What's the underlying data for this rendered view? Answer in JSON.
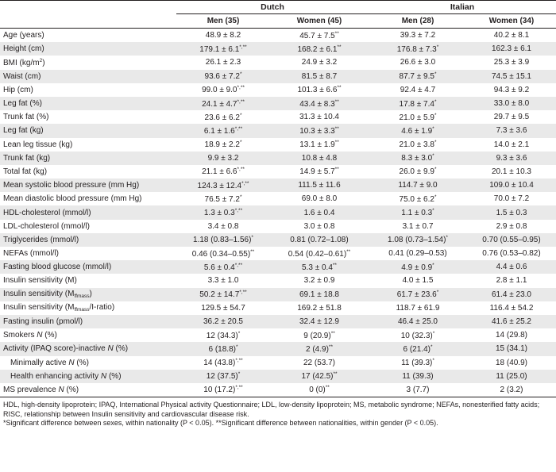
{
  "groups": [
    "Dutch",
    "Italian"
  ],
  "columns": [
    "Men (35)",
    "Women (45)",
    "Men (28)",
    "Women (34)"
  ],
  "rows": [
    {
      "label": "Age (years)",
      "values": [
        "48.9 ± 8.2",
        "45.7 ± 7.5**",
        "39.3 ± 7.2",
        "40.2 ± 8.1"
      ]
    },
    {
      "label": "Height (cm)",
      "values": [
        "179.1 ± 6.1*,**",
        "168.2 ± 6.1**",
        "176.8 ± 7.3*",
        "162.3 ± 6.1"
      ]
    },
    {
      "label": "BMI (kg/m^2)",
      "values": [
        "26.1 ± 2.3",
        "24.9 ± 3.2",
        "26.6 ± 3.0",
        "25.3 ± 3.9"
      ]
    },
    {
      "label": "Waist (cm)",
      "values": [
        "93.6 ± 7.2*",
        "81.5 ± 8.7",
        "87.7 ± 9.5*",
        "74.5 ± 15.1"
      ]
    },
    {
      "label": "Hip (cm)",
      "values": [
        "99.0 ± 9.0*,**",
        "101.3 ± 6.6**",
        "92.4 ± 4.7",
        "94.3 ± 9.2"
      ]
    },
    {
      "label": "Leg fat (%)",
      "values": [
        "24.1 ± 4.7*,**",
        "43.4 ± 8.3**",
        "17.8 ± 7.4*",
        "33.0 ± 8.0"
      ]
    },
    {
      "label": "Trunk fat (%)",
      "values": [
        "23.6 ± 6.2*",
        "31.3 ± 10.4",
        "21.0 ± 5.9*",
        "29.7 ± 9.5"
      ]
    },
    {
      "label": "Leg fat (kg)",
      "values": [
        "6.1 ± 1.6*,**",
        "10.3 ± 3.3**",
        "4.6 ± 1.9*",
        "7.3 ± 3.6"
      ]
    },
    {
      "label": "Lean leg tissue (kg)",
      "values": [
        "18.9 ± 2.2*",
        "13.1 ± 1.9**",
        "21.0 ± 3.8*",
        "14.0 ± 2.1"
      ]
    },
    {
      "label": "Trunk fat (kg)",
      "values": [
        "9.9 ± 3.2",
        "10.8 ± 4.8",
        "8.3 ± 3.0*",
        "9.3 ± 3.6"
      ]
    },
    {
      "label": "Total fat (kg)",
      "values": [
        "21.1 ± 6.6*,**",
        "14.9 ± 5.7**",
        "26.0 ± 9.9*",
        "20.1 ± 10.3"
      ]
    },
    {
      "label": "Mean systolic blood pressure (mm Hg)",
      "values": [
        "124.3 ± 12.4*,**",
        "111.5 ± 11.6",
        "114.7 ± 9.0",
        "109.0 ± 10.4"
      ]
    },
    {
      "label": "Mean diastolic blood pressure (mm Hg)",
      "values": [
        "76.5 ± 7.2*",
        "69.0 ± 8.0",
        "75.0 ± 6.2*",
        "70.0 ± 7.2"
      ]
    },
    {
      "label": "HDL-cholesterol (mmol/l)",
      "values": [
        "1.3 ± 0.3*,**",
        "1.6 ± 0.4",
        "1.1 ± 0.3*",
        "1.5 ± 0.3"
      ]
    },
    {
      "label": "LDL-cholesterol (mmol/l)",
      "values": [
        "3.4 ± 0.8",
        "3.0 ± 0.8",
        "3.1 ± 0.7",
        "2.9 ± 0.8"
      ]
    },
    {
      "label": "Triglycerides (mmol/l)",
      "values": [
        "1.18 (0.83–1.56)*",
        "0.81 (0.72–1.08)",
        "1.08 (0.73–1.54)*",
        "0.70 (0.55–0.95)"
      ]
    },
    {
      "label": "NEFAs (mmol/l)",
      "values": [
        "0.46 (0.34–0.55)**",
        "0.54 (0.42–0.61)**",
        "0.41 (0.29–0.53)",
        "0.76 (0.53–0.82)"
      ]
    },
    {
      "label": "Fasting blood glucose (mmol/l)",
      "values": [
        "5.6 ± 0.4*,**",
        "5.3 ± 0.4**",
        "4.9 ± 0.9*",
        "4.4 ± 0.6"
      ]
    },
    {
      "label": "Insulin sensitivity (M)",
      "values": [
        "3.3 ± 1.0",
        "3.2 ± 0.9",
        "4.0 ± 1.5",
        "2.8 ± 1.1"
      ]
    },
    {
      "label": "Insulin sensitivity (M_ffmass)",
      "values": [
        "50.2 ± 14.7*,**",
        "69.1 ± 18.8",
        "61.7 ± 23.6*",
        "61.4 ± 23.0"
      ]
    },
    {
      "label": "Insulin sensitivity (M_ffmass/I-ratio)",
      "values": [
        "129.5 ± 54.7",
        "169.2 ± 51.8",
        "118.7 ± 61.9",
        "116.4 ± 54.2"
      ]
    },
    {
      "label": "Fasting insulin (pmol/l)",
      "values": [
        "36.2 ± 20.5",
        "32.4 ± 12.9",
        "46.4 ± 25.0",
        "41.6 ± 25.2"
      ]
    },
    {
      "label": "Smokers N (%)",
      "values": [
        "12 (34.3)*",
        "9 (20.9)**",
        "10 (32.3)*",
        "14 (29.8)"
      ]
    },
    {
      "label": "Activity (IPAQ score)-inactive N (%)",
      "values": [
        "6 (18.8)*",
        "2 (4.9)**",
        "6 (21.4)*",
        "15 (34.1)"
      ]
    },
    {
      "label": "Minimally active N (%)",
      "indent": true,
      "values": [
        "14 (43.8)*,**",
        "22 (53.7)",
        "11 (39.3)*",
        "18 (40.9)"
      ]
    },
    {
      "label": "Health enhancing activity N (%)",
      "indent": true,
      "values": [
        "12 (37.5)*",
        "17 (42.5)**",
        "11 (39.3)",
        "11 (25.0)"
      ]
    },
    {
      "label": "MS prevalence N (%)",
      "values": [
        "10 (17.2)*,**",
        "0 (0)**",
        "3 (7.7)",
        "2 (3.2)"
      ]
    }
  ],
  "footnotes": [
    "HDL, high-density lipoprotein; IPAQ, International Physical activity Questionnaire; LDL, low-density lipoprotein; MS, metabolic syndrome; NEFAs, nonesterified fatty acids; RISC, relationship between Insulin sensitivity and cardiovascular disease risk.",
    "*Significant difference between sexes, within nationality (P < 0.05). **Significant difference between nationalities, within gender (P < 0.05)."
  ]
}
